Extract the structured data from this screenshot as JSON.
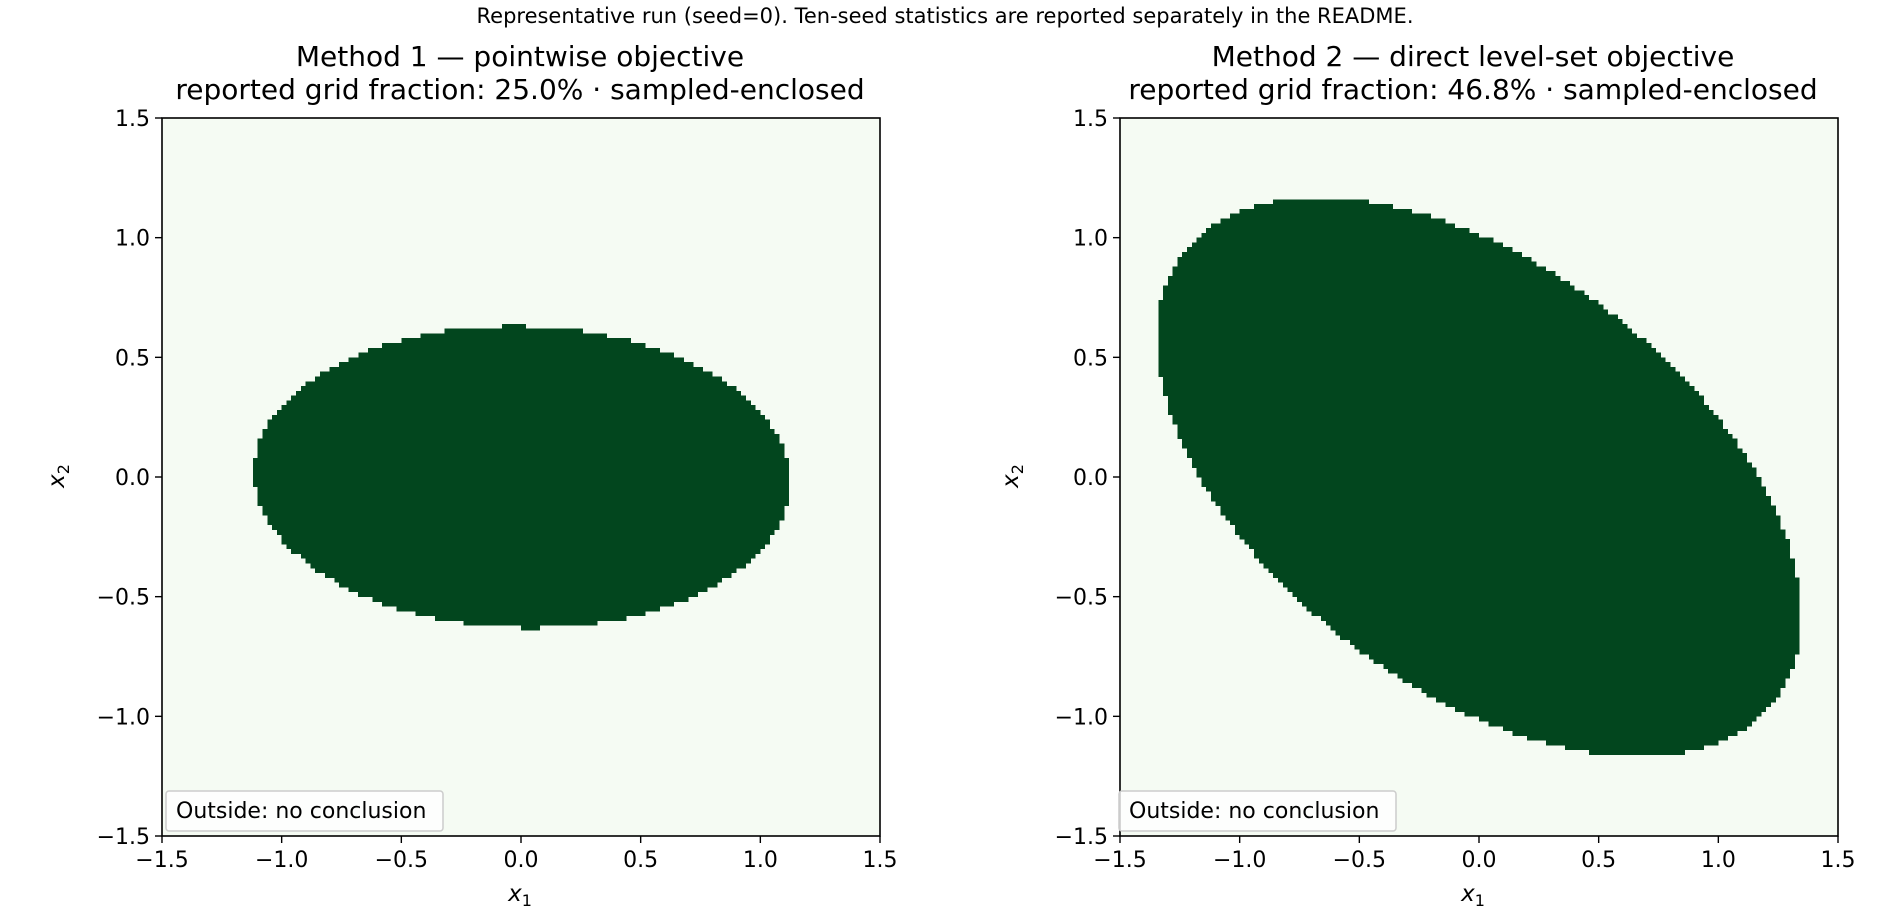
{
  "figure": {
    "caption": "Representative run (seed=0). Ten-seed statistics are reported separately in the README."
  },
  "colors": {
    "inside": "#02461e",
    "outside": "#f5fbf3",
    "axes": "#000000",
    "legend_border": "#cccccc"
  },
  "chart_data": [
    {
      "type": "heatmap",
      "title": "Method 1 — pointwise objective",
      "subtitle": "reported grid fraction: 25.0% · sampled-enclosed",
      "xlabel": "x",
      "xlabel_sub": "1",
      "ylabel": "x",
      "ylabel_sub": "2",
      "xlim": [
        -1.5,
        1.5
      ],
      "ylim": [
        -1.5,
        1.5
      ],
      "xticks": [
        -1.5,
        -1.0,
        -0.5,
        0.0,
        0.5,
        1.0,
        1.5
      ],
      "yticks": [
        -1.5,
        -1.0,
        -0.5,
        0.0,
        0.5,
        1.0,
        1.5
      ],
      "xtick_labels": [
        "−1.5",
        "−1.0",
        "−0.5",
        "0.0",
        "0.5",
        "1.0",
        "1.5"
      ],
      "ytick_labels": [
        "−1.5",
        "−1.0",
        "−0.5",
        "0.0",
        "0.5",
        "1.0",
        "1.5"
      ],
      "legend": "Outside: no conclusion",
      "legend_loc": "lower left",
      "grid": false,
      "region": {
        "shape": "ellipse",
        "center": [
          0.005,
          0.0
        ],
        "semi_major": 1.12,
        "semi_minor": 0.63,
        "angle_deg": -1.5
      },
      "grid_resolution": 150
    },
    {
      "type": "heatmap",
      "title": "Method 2 — direct level-set objective",
      "subtitle": "reported grid fraction: 46.8% · sampled-enclosed",
      "xlabel": "x",
      "xlabel_sub": "1",
      "ylabel": "x",
      "ylabel_sub": "2",
      "xlim": [
        -1.5,
        1.5
      ],
      "ylim": [
        -1.5,
        1.5
      ],
      "xticks": [
        -1.5,
        -1.0,
        -0.5,
        0.0,
        0.5,
        1.0,
        1.5
      ],
      "yticks": [
        -1.5,
        -1.0,
        -0.5,
        0.0,
        0.5,
        1.0,
        1.5
      ],
      "xtick_labels": [
        "−1.5",
        "−1.0",
        "−0.5",
        "0.0",
        "0.5",
        "1.0",
        "1.5"
      ],
      "ytick_labels": [
        "−1.5",
        "−1.0",
        "−0.5",
        "0.0",
        "0.5",
        "1.0",
        "1.5"
      ],
      "legend": "Outside: no conclusion",
      "legend_loc": "lower left",
      "grid": false,
      "region": {
        "shape": "ellipse",
        "center": [
          0.0,
          0.0
        ],
        "semi_major": 1.55,
        "semi_minor": 0.88,
        "angle_deg": -37
      },
      "grid_resolution": 150
    }
  ]
}
